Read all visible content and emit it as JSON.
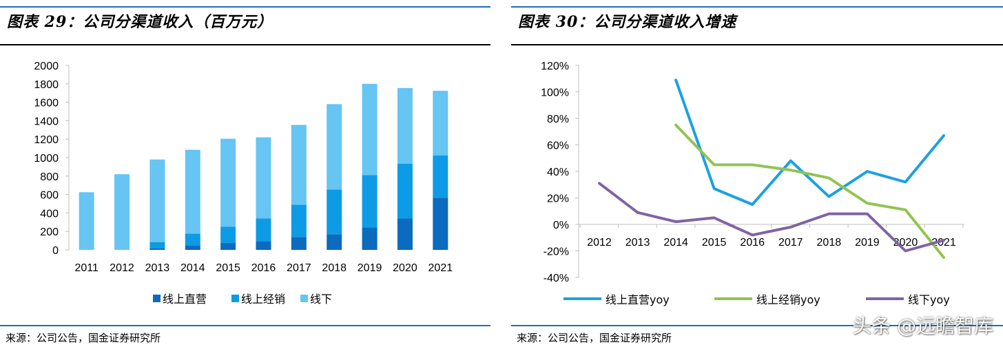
{
  "left": {
    "title": "图表 29：公司分渠道收入（百万元）",
    "source": "来源：公司公告，国金证券研究所"
  },
  "right": {
    "title": "图表 30：公司分渠道收入增速",
    "source": "来源：公司公告，国金证券研究所"
  },
  "watermark": "头条 @远瞻智库",
  "colors": {
    "online_direct": "#0a6bbf",
    "online_dist": "#0d9be6",
    "offline": "#66c5f2",
    "line_direct": "#1ba1e2",
    "line_dist": "#92c353",
    "line_offline": "#8063a5",
    "rule": "#1f6fb5"
  },
  "chart_data": [
    {
      "type": "bar",
      "stacked": true,
      "title": "公司分渠道收入（百万元）",
      "categories": [
        "2011",
        "2012",
        "2013",
        "2014",
        "2015",
        "2016",
        "2017",
        "2018",
        "2019",
        "2020",
        "2021"
      ],
      "series": [
        {
          "name": "线上直营",
          "values": [
            0,
            0,
            15,
            50,
            75,
            95,
            140,
            170,
            245,
            340,
            565
          ]
        },
        {
          "name": "线上经销",
          "values": [
            0,
            0,
            70,
            125,
            175,
            245,
            350,
            485,
            565,
            595,
            460
          ]
        },
        {
          "name": "线下",
          "values": [
            625,
            820,
            895,
            910,
            955,
            880,
            865,
            925,
            990,
            820,
            700
          ]
        }
      ],
      "ylim": [
        0,
        2000
      ],
      "yticks": [
        0,
        200,
        400,
        600,
        800,
        1000,
        1200,
        1400,
        1600,
        1800,
        2000
      ],
      "legend": "bottom"
    },
    {
      "type": "line",
      "title": "公司分渠道收入增速",
      "categories": [
        "2012",
        "2013",
        "2014",
        "2015",
        "2016",
        "2017",
        "2018",
        "2019",
        "2020",
        "2021"
      ],
      "series": [
        {
          "name": "线上直营yoy",
          "values": [
            null,
            null,
            109,
            27,
            15,
            48,
            21,
            40,
            32,
            67
          ]
        },
        {
          "name": "线上经销yoy",
          "values": [
            null,
            null,
            75,
            45,
            45,
            41,
            35,
            16,
            11,
            -25
          ]
        },
        {
          "name": "线下yoy",
          "values": [
            31,
            9,
            2,
            5,
            -8,
            -2,
            8,
            8,
            -20,
            -12
          ]
        }
      ],
      "ylim": [
        -40,
        120
      ],
      "yticks": [
        "-40%",
        "-20%",
        "0%",
        "20%",
        "40%",
        "60%",
        "80%",
        "100%",
        "120%"
      ],
      "legend": "bottom"
    }
  ]
}
